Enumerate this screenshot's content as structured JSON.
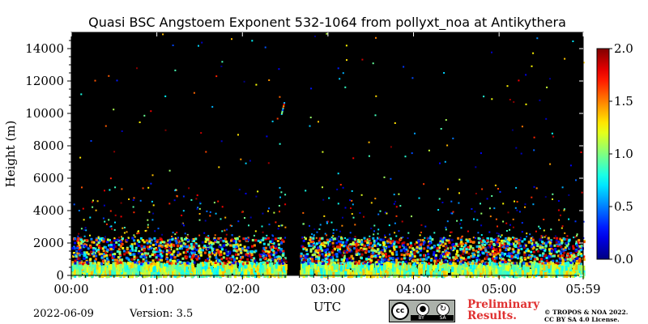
{
  "chart_data": {
    "type": "heatmap",
    "title": "Quasi BSC Angstoem Exponent 532-1064 from pollyxt_noa at Antikythera",
    "xlabel": "UTC",
    "ylabel": "Height (m)",
    "x_ticks": [
      "00:00",
      "01:00",
      "02:00",
      "03:00",
      "04:00",
      "05:00",
      "05:59"
    ],
    "x_range_hours": [
      0,
      5.983
    ],
    "y_ticks": [
      0,
      2000,
      4000,
      6000,
      8000,
      10000,
      12000,
      14000
    ],
    "ylim": [
      0,
      15000
    ],
    "colorbar": {
      "range": [
        0.0,
        2.0
      ],
      "ticks": [
        "0.0",
        "0.5",
        "1.0",
        "1.5",
        "2.0"
      ],
      "colormap": "jet",
      "position": "right"
    },
    "background_color": "#000000",
    "data_gap_hours": [
      2.5,
      2.67
    ],
    "layers": [
      {
        "height_range_m": [
          0,
          700
        ],
        "exponent_range": [
          0.7,
          1.4
        ],
        "density": "dense"
      },
      {
        "height_range_m": [
          700,
          2300
        ],
        "exponent_range": [
          0.0,
          2.0
        ],
        "density": "dense"
      },
      {
        "height_range_m": [
          2300,
          5500
        ],
        "exponent_range": [
          0.0,
          2.0
        ],
        "density": "sparse"
      },
      {
        "height_range_m": [
          5500,
          15000
        ],
        "exponent_range": [
          0.0,
          2.0
        ],
        "density": "very sparse"
      }
    ],
    "feature": {
      "hour": 2.45,
      "height_range_m": [
        10000,
        10700
      ],
      "exponent_range": [
        0.3,
        1.9
      ]
    }
  },
  "footer": {
    "date": "2022-06-09",
    "version": "Version: 3.5",
    "preliminary_line1": "Preliminary",
    "preliminary_line2": "Results.",
    "copyright_line1": "© TROPOS & NOA 2022.",
    "copyright_line2": "CC BY SA 4.0 License.",
    "license_badge": {
      "cc": "cc",
      "by": "BY",
      "sa": "SA"
    }
  }
}
